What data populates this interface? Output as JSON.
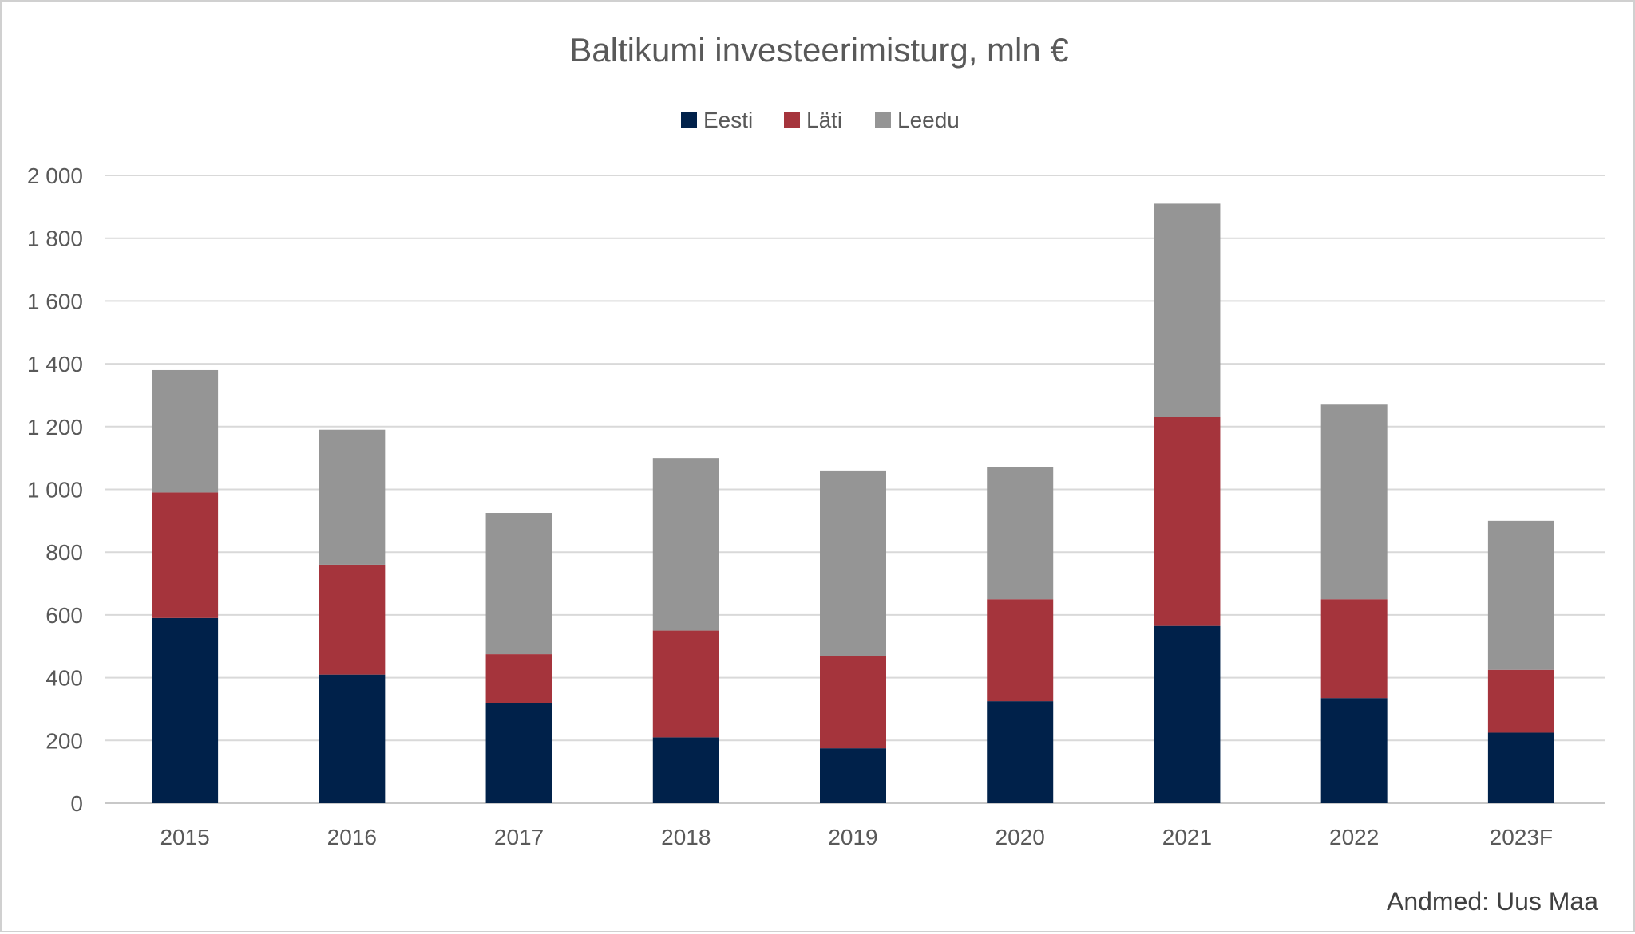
{
  "chart_data": {
    "type": "bar",
    "stacked": true,
    "title": "Baltikumi investeerimisturg, mln €",
    "xlabel": "",
    "ylabel": "",
    "categories": [
      "2015",
      "2016",
      "2017",
      "2018",
      "2019",
      "2020",
      "2021",
      "2022",
      "2023F"
    ],
    "series": [
      {
        "name": "Eesti",
        "color": "#00214a",
        "values": [
          590,
          410,
          320,
          210,
          175,
          325,
          565,
          335,
          225
        ]
      },
      {
        "name": "Läti",
        "color": "#a5343c",
        "values": [
          400,
          350,
          155,
          340,
          295,
          325,
          665,
          315,
          200
        ]
      },
      {
        "name": "Leedu",
        "color": "#959595",
        "values": [
          390,
          430,
          450,
          550,
          590,
          420,
          680,
          620,
          475
        ]
      }
    ],
    "ylim": [
      0,
      2000
    ],
    "y_ticks": [
      0,
      200,
      400,
      600,
      800,
      1000,
      1200,
      1400,
      1600,
      1800,
      2000
    ],
    "y_tick_labels": [
      "0",
      "200",
      "400",
      "600",
      "800",
      "1 000",
      "1 200",
      "1 400",
      "1 600",
      "1 800",
      "2 000"
    ],
    "grid": true,
    "legend_position": "top-center",
    "source": "Andmed: Uus Maa"
  }
}
